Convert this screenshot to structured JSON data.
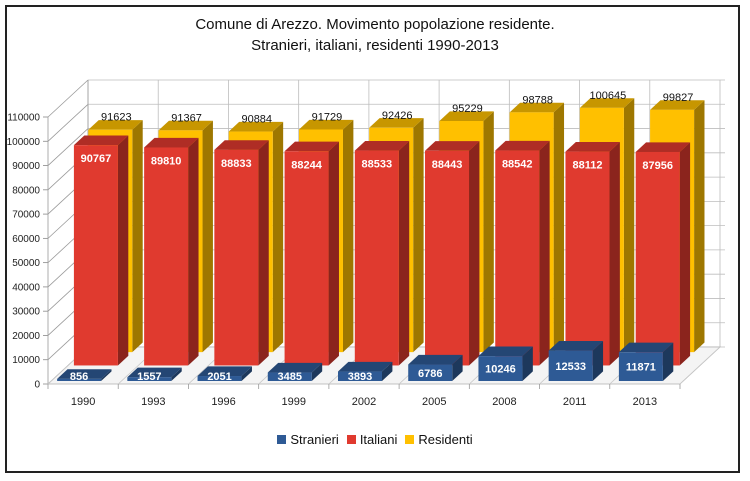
{
  "chart_data": {
    "type": "bar",
    "style": "3d-clustered-column",
    "title": "Comune di Arezzo. Movimento popolazione residente.",
    "subtitle": "Stranieri, italiani, residenti 1990-2013",
    "xlabel": "",
    "ylabel": "",
    "ylim": [
      0,
      110000
    ],
    "yticks": [
      "0",
      "10000",
      "20000",
      "30000",
      "40000",
      "50000",
      "60000",
      "70000",
      "80000",
      "90000",
      "100000",
      "110000"
    ],
    "grid": true,
    "legend_position": "bottom",
    "categories": [
      "1990",
      "1993",
      "1996",
      "1999",
      "2002",
      "2005",
      "2008",
      "2011",
      "2013"
    ],
    "series": [
      {
        "name": "Stranieri",
        "color": "#2e5a95",
        "values": [
          856,
          1557,
          2051,
          3485,
          3893,
          6786,
          10246,
          12533,
          11871
        ],
        "labels": [
          "856",
          "1557",
          "2051",
          "3485",
          "3893",
          "6786",
          "10246",
          "12533",
          "11871"
        ]
      },
      {
        "name": "Italiani",
        "color": "#e03a2f",
        "values": [
          90767,
          89810,
          88833,
          88244,
          88533,
          88443,
          88542,
          88112,
          87956
        ],
        "labels": [
          "90767",
          "89810",
          "88833",
          "88244",
          "88533",
          "88443",
          "88542",
          "88112",
          "87956"
        ]
      },
      {
        "name": "Residenti",
        "color": "#ffc000",
        "values": [
          91623,
          91367,
          90884,
          91729,
          92426,
          95229,
          98788,
          100645,
          99827
        ],
        "labels": [
          "91623",
          "91367",
          "90884",
          "91729",
          "92426",
          "95229",
          "98788",
          "100645",
          "99827"
        ]
      }
    ]
  }
}
